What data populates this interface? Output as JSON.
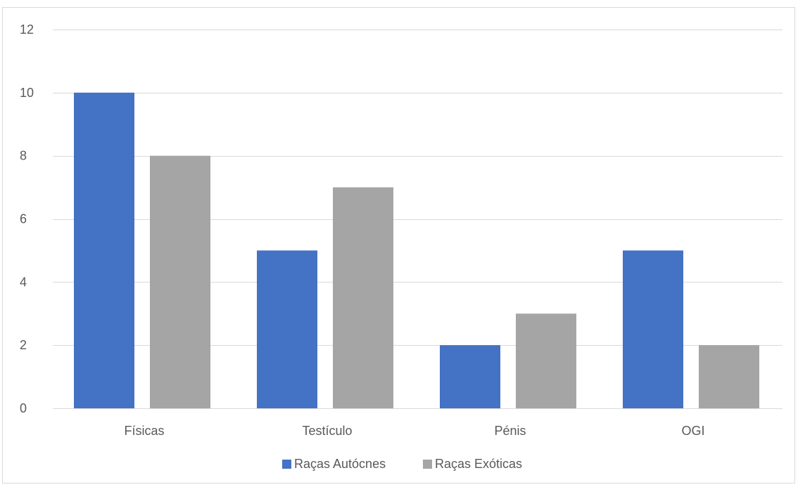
{
  "chart_data": {
    "type": "bar",
    "title": "",
    "xlabel": "",
    "ylabel": "",
    "categories": [
      "Físicas",
      "Testículo",
      "Pénis",
      "OGI"
    ],
    "series": [
      {
        "name": "Raças Autócnes",
        "values": [
          10,
          5,
          2,
          5
        ],
        "color": "#4472c4"
      },
      {
        "name": "Raças Exóticas",
        "values": [
          8,
          7,
          3,
          2
        ],
        "color": "#a5a5a5"
      }
    ],
    "ylim": [
      0,
      12
    ],
    "yticks": [
      0,
      2,
      4,
      6,
      8,
      10,
      12
    ],
    "grid": true,
    "gridline_color": "#d9d9d9",
    "legend_position": "bottom"
  }
}
